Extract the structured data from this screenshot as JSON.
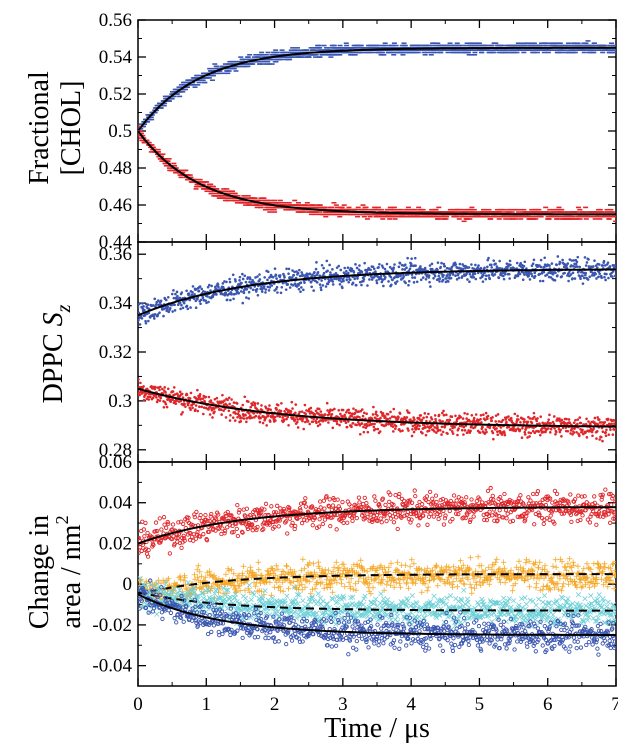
{
  "colors": {
    "blue": "#3a56b0",
    "red": "#e0262a",
    "orange": "#f5a623",
    "cyan": "#6fd0d8",
    "fit": "#000000"
  },
  "chart_data": [
    {
      "type": "scatter",
      "ylabel_lines": [
        "Fractional",
        "[CHOL]"
      ],
      "yticks": [
        "0.44",
        "0.46",
        "0.48",
        "0.5",
        "0.52",
        "0.54",
        "0.56"
      ],
      "ylim": [
        0.44,
        0.56
      ],
      "xlim": [
        0,
        7
      ],
      "series": [
        {
          "color_key": "blue",
          "x": [
            0,
            0.25,
            0.5,
            1,
            1.5,
            2,
            3,
            4,
            5,
            6,
            7
          ],
          "y": [
            0.5,
            0.516,
            0.524,
            0.533,
            0.538,
            0.541,
            0.544,
            0.545,
            0.546,
            0.546,
            0.546
          ],
          "fit": {
            "from": 0.5,
            "to": 0.545,
            "tau": 0.9
          }
        },
        {
          "color_key": "red",
          "x": [
            0,
            0.25,
            0.5,
            1,
            1.5,
            2,
            3,
            4,
            5,
            6,
            7
          ],
          "y": [
            0.5,
            0.483,
            0.476,
            0.467,
            0.462,
            0.459,
            0.456,
            0.455,
            0.455,
            0.454,
            0.454
          ],
          "fit": {
            "from": 0.5,
            "to": 0.455,
            "tau": 0.9
          }
        }
      ]
    },
    {
      "type": "scatter",
      "ylabel_main": "DPPC ",
      "ylabel_italic": "S",
      "ylabel_sub": "z",
      "yticks": [
        "0.28",
        "0.3",
        "0.32",
        "0.34",
        "0.36"
      ],
      "ylim": [
        0.275,
        0.365
      ],
      "xlim": [
        0,
        7
      ],
      "series": [
        {
          "color_key": "blue",
          "x": [
            0,
            1,
            2,
            3,
            4,
            5,
            6,
            7
          ],
          "y": [
            0.335,
            0.343,
            0.348,
            0.351,
            0.352,
            0.353,
            0.353,
            0.353
          ],
          "fit": {
            "from": 0.335,
            "to": 0.354,
            "tau": 1.6
          }
        },
        {
          "color_key": "red",
          "x": [
            0,
            1,
            2,
            3,
            4,
            5,
            6,
            7
          ],
          "y": [
            0.305,
            0.298,
            0.294,
            0.292,
            0.291,
            0.29,
            0.289,
            0.289
          ],
          "fit": {
            "from": 0.305,
            "to": 0.289,
            "tau": 2.0
          }
        }
      ]
    },
    {
      "type": "scatter",
      "ylabel_lines": [
        "Change in",
        "area / nm"
      ],
      "ylabel_sup": "2",
      "yticks": [
        "-0.04",
        "-0.02",
        "0",
        "0.02",
        "0.04",
        "0.06"
      ],
      "ylim": [
        -0.05,
        0.06
      ],
      "xlim": [
        0,
        7
      ],
      "xticks": [
        "0",
        "1",
        "2",
        "3",
        "4",
        "5",
        "6",
        "7"
      ],
      "xlabel": "Time / μs",
      "series": [
        {
          "color_key": "red",
          "x": [
            0,
            1,
            2,
            3,
            4,
            5,
            6,
            7
          ],
          "y": [
            0.02,
            0.028,
            0.032,
            0.035,
            0.036,
            0.037,
            0.037,
            0.037
          ],
          "fit": {
            "from": 0.02,
            "to": 0.038,
            "tau": 1.5
          },
          "fit_style": "solid"
        },
        {
          "color_key": "orange",
          "x": [
            0,
            1,
            2,
            3,
            4,
            5,
            6,
            7
          ],
          "y": [
            -0.005,
            0.0,
            0.002,
            0.004,
            0.005,
            0.005,
            0.005,
            0.005
          ],
          "fit": {
            "from": -0.005,
            "to": 0.005,
            "tau": 1.2
          },
          "fit_style": "dashed"
        },
        {
          "color_key": "cyan",
          "x": [
            0,
            1,
            2,
            3,
            4,
            5,
            6,
            7
          ],
          "y": [
            -0.004,
            -0.009,
            -0.011,
            -0.012,
            -0.013,
            -0.013,
            -0.013,
            -0.013
          ],
          "fit": {
            "from": -0.004,
            "to": -0.013,
            "tau": 1.2
          },
          "fit_style": "dashed"
        },
        {
          "color_key": "blue",
          "x": [
            0,
            1,
            2,
            3,
            4,
            5,
            6,
            7
          ],
          "y": [
            -0.005,
            -0.015,
            -0.02,
            -0.022,
            -0.023,
            -0.024,
            -0.024,
            -0.024
          ],
          "fit": {
            "from": -0.005,
            "to": -0.025,
            "tau": 1.2
          },
          "fit_style": "solid"
        }
      ]
    }
  ]
}
